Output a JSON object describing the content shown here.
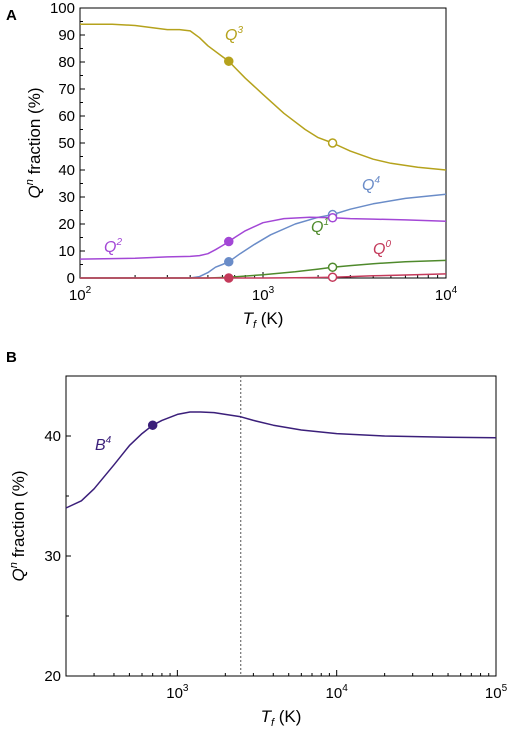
{
  "chart_data": [
    {
      "panel": "A",
      "type": "line",
      "xlabel_main": "T",
      "xlabel_sub": "f",
      "xlabel_unit": " (K)",
      "ylabel_main": "Q",
      "ylabel_sup": "n",
      "ylabel_rest": " fraction (%)",
      "xscale": "log",
      "xlim": [
        100,
        10000
      ],
      "ylim": [
        0,
        100
      ],
      "x_ticks": [
        {
          "base": "10",
          "exp": "2",
          "value": 100
        },
        {
          "base": "10",
          "exp": "3",
          "value": 1000
        },
        {
          "base": "10",
          "exp": "4",
          "value": 10000
        }
      ],
      "y_ticks": [
        "0",
        "10",
        "20",
        "30",
        "40",
        "50",
        "60",
        "70",
        "80",
        "90",
        "100"
      ],
      "legend": "none",
      "series": [
        {
          "name": "Q",
          "sup": "3",
          "color": "#b5a21c",
          "x": [
            100,
            150,
            200,
            300,
            350,
            400,
            450,
            500,
            600,
            650,
            700,
            800,
            1000,
            1300,
            1700,
            2000,
            2400,
            3000,
            4000,
            5000,
            7000,
            10000
          ],
          "y": [
            94,
            94,
            93.5,
            92,
            92,
            91.5,
            89,
            86,
            82,
            80.3,
            78,
            74,
            68,
            61,
            55,
            52,
            50,
            47,
            44,
            42.5,
            41,
            40
          ],
          "markers": [
            {
              "x": 650,
              "y": 80.3,
              "filled": true
            },
            {
              "x": 2400,
              "y": 50,
              "filled": false
            }
          ]
        },
        {
          "name": "Q",
          "sup": "4",
          "color": "#6a8cc8",
          "x": [
            100,
            400,
            450,
            500,
            550,
            600,
            650,
            750,
            900,
            1100,
            1500,
            2000,
            2400,
            3000,
            4000,
            6000,
            10000
          ],
          "y": [
            0,
            0,
            0.5,
            2,
            4,
            5,
            6,
            9,
            12.5,
            16,
            20,
            22.5,
            23.5,
            25.5,
            27.5,
            29.5,
            31
          ],
          "markers": [
            {
              "x": 650,
              "y": 6,
              "filled": true
            },
            {
              "x": 2400,
              "y": 23.5,
              "filled": false
            }
          ]
        },
        {
          "name": "Q",
          "sup": "2",
          "color": "#a347d6",
          "x": [
            100,
            200,
            300,
            400,
            450,
            500,
            550,
            600,
            650,
            700,
            800,
            1000,
            1300,
            1800,
            2400,
            3000,
            4000,
            6000,
            10000
          ],
          "y": [
            7,
            7.3,
            7.8,
            8,
            8.3,
            9,
            10.5,
            12,
            13.5,
            15,
            17.5,
            20.5,
            22,
            22.5,
            22.3,
            22,
            21.8,
            21.5,
            21
          ],
          "markers": [
            {
              "x": 650,
              "y": 13.5,
              "filled": true
            },
            {
              "x": 2400,
              "y": 22.3,
              "filled": false
            }
          ]
        },
        {
          "name": "Q",
          "sup": "1",
          "color": "#4f8a2c",
          "x": [
            100,
            500,
            650,
            1000,
            1500,
            2000,
            2400,
            3000,
            4000,
            6000,
            10000
          ],
          "y": [
            0,
            0,
            0.3,
            1.2,
            2.3,
            3.3,
            4,
            4.6,
            5.3,
            6,
            6.5
          ],
          "markers": [
            {
              "x": 2400,
              "y": 4,
              "filled": false
            }
          ]
        },
        {
          "name": "Q",
          "sup": "0",
          "color": "#c43a5b",
          "x": [
            100,
            650,
            1000,
            1500,
            2000,
            2400,
            3000,
            4000,
            6000,
            10000
          ],
          "y": [
            0,
            0,
            0,
            0.1,
            0.2,
            0.3,
            0.5,
            0.8,
            1.1,
            1.5
          ],
          "markers": [
            {
              "x": 650,
              "y": 0,
              "filled": true
            },
            {
              "x": 2400,
              "y": 0.3,
              "filled": false
            }
          ]
        }
      ]
    },
    {
      "panel": "B",
      "type": "line",
      "xlabel_main": "T",
      "xlabel_sub": "f",
      "xlabel_unit": " (K)",
      "ylabel_main": "Q",
      "ylabel_sup": "n",
      "ylabel_rest": " fraction (%)",
      "xscale": "log",
      "xlim": [
        200,
        100000
      ],
      "ylim": [
        20,
        45
      ],
      "x_ticks": [
        {
          "base": "10",
          "exp": "3",
          "value": 1000
        },
        {
          "base": "10",
          "exp": "4",
          "value": 10000
        },
        {
          "base": "10",
          "exp": "5",
          "value": 100000
        }
      ],
      "y_ticks": [
        {
          "label": "20",
          "value": 20
        },
        {
          "label": "30",
          "value": 30
        },
        {
          "label": "40",
          "value": 40
        }
      ],
      "reference_line_x": 2500,
      "legend": "none",
      "series": [
        {
          "name": "B",
          "sup": "4",
          "color": "#3b1f7a",
          "x": [
            200,
            250,
            300,
            400,
            500,
            600,
            700,
            800,
            1000,
            1200,
            1400,
            1700,
            2000,
            2500,
            3000,
            4000,
            6000,
            10000,
            20000,
            50000,
            100000
          ],
          "y": [
            34,
            34.6,
            35.6,
            37.6,
            39.2,
            40.2,
            40.9,
            41.3,
            41.8,
            42,
            42,
            41.95,
            41.8,
            41.6,
            41.3,
            40.9,
            40.5,
            40.2,
            40,
            39.9,
            39.85
          ],
          "markers": [
            {
              "x": 700,
              "y": 40.9,
              "filled": true
            }
          ]
        }
      ]
    }
  ]
}
